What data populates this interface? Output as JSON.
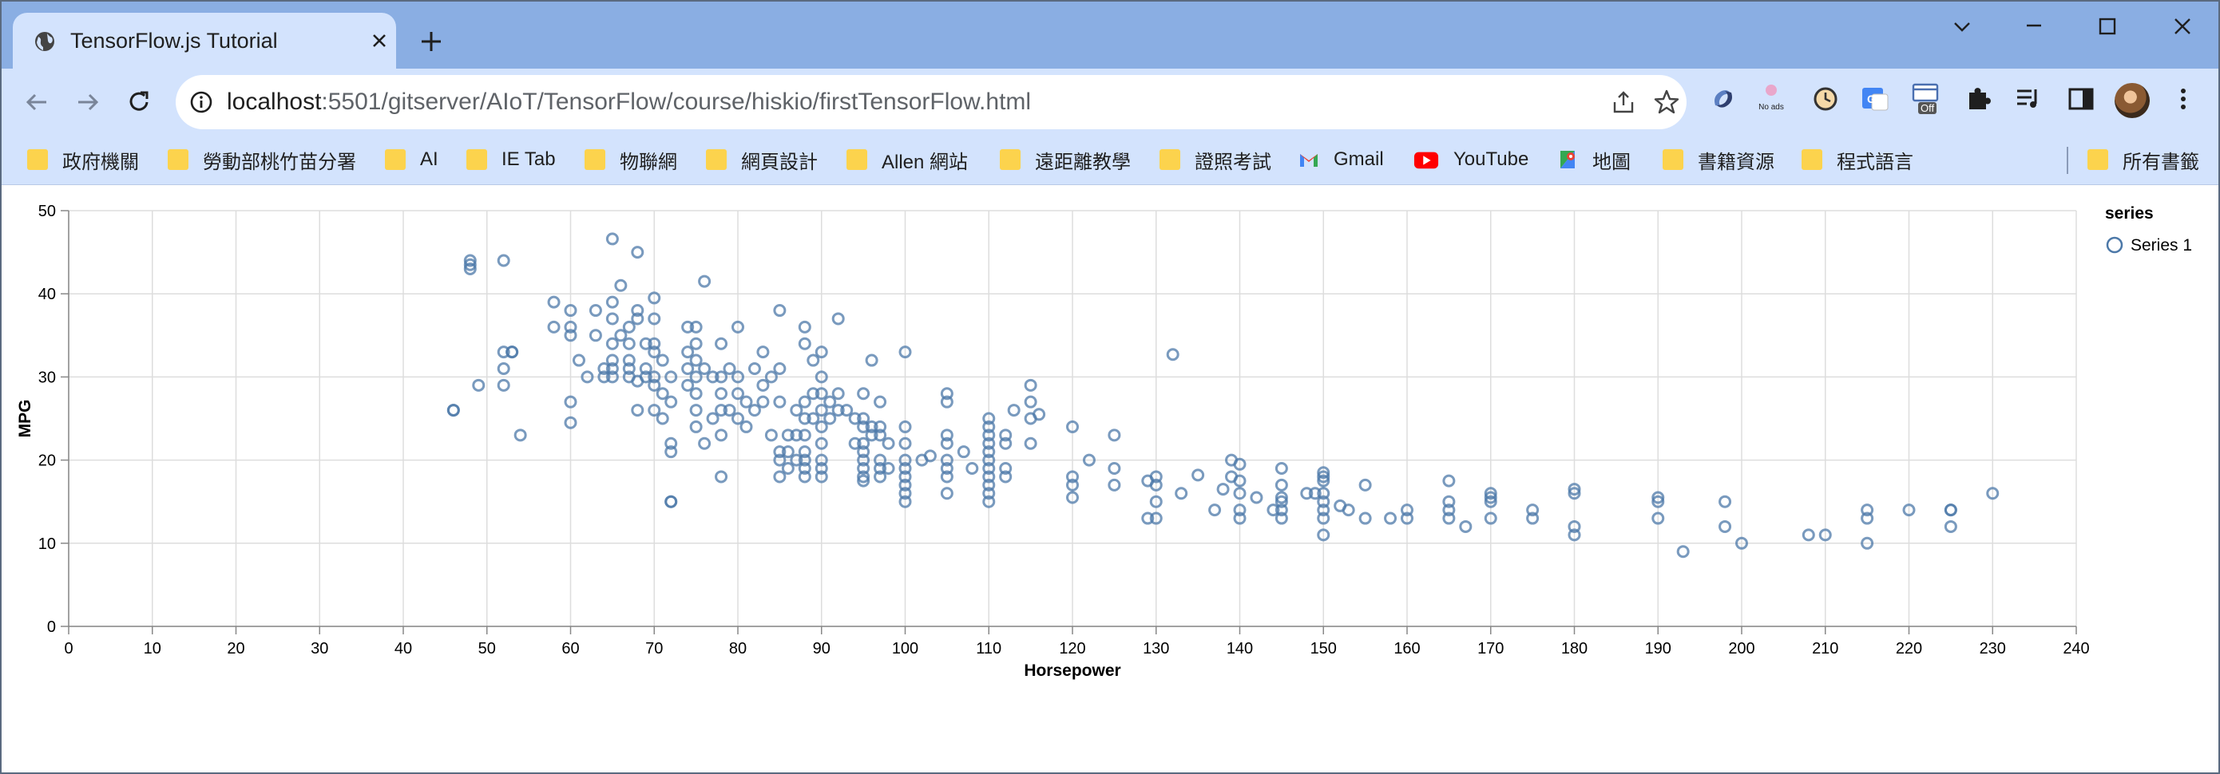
{
  "browser": {
    "tab": {
      "title": "TensorFlow.js Tutorial",
      "favicon": "globe-icon"
    },
    "url": {
      "host": "localhost",
      "path": ":5501/gitserver/AIoT/TensorFlow/course/hiskio/firstTensorFlow.html"
    },
    "extensions": {
      "noads_label": "No ads",
      "off_label": "Off"
    },
    "bookmarks": [
      {
        "label": "政府機關",
        "icon": "folder-icon"
      },
      {
        "label": "勞動部桃竹苗分署",
        "icon": "folder-icon"
      },
      {
        "label": "AI",
        "icon": "folder-icon"
      },
      {
        "label": "IE Tab",
        "icon": "folder-icon"
      },
      {
        "label": "物聯網",
        "icon": "folder-icon"
      },
      {
        "label": "網頁設計",
        "icon": "folder-icon"
      },
      {
        "label": "Allen 網站",
        "icon": "folder-icon"
      },
      {
        "label": "遠距離教學",
        "icon": "folder-icon"
      },
      {
        "label": "證照考試",
        "icon": "folder-icon"
      },
      {
        "label": "Gmail",
        "icon": "gmail-icon"
      },
      {
        "label": "YouTube",
        "icon": "youtube-icon"
      },
      {
        "label": "地圖",
        "icon": "maps-icon"
      },
      {
        "label": "書籍資源",
        "icon": "folder-icon"
      },
      {
        "label": "程式語言",
        "icon": "folder-icon"
      }
    ],
    "all_bookmarks": {
      "label": "所有書籤",
      "icon": "folder-icon"
    },
    "colors": {
      "titlebar": "#8aaee3",
      "toolbar": "#d3e3fd",
      "folder": "#fcd34d"
    }
  },
  "chart_data": {
    "type": "scatter",
    "xlabel": "Horsepower",
    "ylabel": "MPG",
    "xlim": [
      0,
      240
    ],
    "ylim": [
      0,
      50
    ],
    "xticks": [
      0,
      10,
      20,
      30,
      40,
      50,
      60,
      70,
      80,
      90,
      100,
      110,
      120,
      130,
      140,
      150,
      160,
      170,
      180,
      190,
      200,
      210,
      220,
      230,
      240
    ],
    "yticks": [
      0,
      10,
      20,
      30,
      40,
      50
    ],
    "grid": true,
    "legend": {
      "title": "series",
      "placement": "top-right"
    },
    "marker_color": "#4c78a8",
    "series": [
      {
        "name": "Series 1",
        "points": [
          [
            46,
            26
          ],
          [
            46,
            26
          ],
          [
            48,
            43
          ],
          [
            48,
            44
          ],
          [
            48,
            43.5
          ],
          [
            49,
            29
          ],
          [
            52,
            44
          ],
          [
            52,
            33
          ],
          [
            52,
            31
          ],
          [
            52,
            29
          ],
          [
            53,
            33
          ],
          [
            53,
            33
          ],
          [
            54,
            23
          ],
          [
            58,
            39
          ],
          [
            58,
            36
          ],
          [
            60,
            38
          ],
          [
            60,
            36
          ],
          [
            60,
            35
          ],
          [
            60,
            27
          ],
          [
            60,
            24.5
          ],
          [
            61,
            32
          ],
          [
            62,
            30
          ],
          [
            63,
            38
          ],
          [
            63,
            35
          ],
          [
            64,
            31
          ],
          [
            64,
            30
          ],
          [
            65,
            39
          ],
          [
            65,
            37
          ],
          [
            65,
            34
          ],
          [
            65,
            32
          ],
          [
            65,
            31
          ],
          [
            65,
            30
          ],
          [
            65,
            46.6
          ],
          [
            66,
            41
          ],
          [
            66,
            35
          ],
          [
            67,
            36
          ],
          [
            67,
            34
          ],
          [
            67,
            32
          ],
          [
            67,
            31
          ],
          [
            67,
            30
          ],
          [
            68,
            45
          ],
          [
            68,
            38
          ],
          [
            68,
            37
          ],
          [
            68,
            29.5
          ],
          [
            68,
            26
          ],
          [
            69,
            31
          ],
          [
            69,
            34
          ],
          [
            69,
            30
          ],
          [
            70,
            39.5
          ],
          [
            70,
            37
          ],
          [
            70,
            34
          ],
          [
            70,
            33
          ],
          [
            70,
            30
          ],
          [
            70,
            29
          ],
          [
            70,
            26
          ],
          [
            71,
            32
          ],
          [
            71,
            25
          ],
          [
            71,
            28
          ],
          [
            72,
            30
          ],
          [
            72,
            27
          ],
          [
            72,
            22
          ],
          [
            72,
            21
          ],
          [
            72,
            15
          ],
          [
            72,
            15
          ],
          [
            74,
            36
          ],
          [
            74,
            33
          ],
          [
            74,
            31
          ],
          [
            74,
            29
          ],
          [
            75,
            36
          ],
          [
            75,
            34
          ],
          [
            75,
            32
          ],
          [
            75,
            30
          ],
          [
            75,
            28
          ],
          [
            75,
            26
          ],
          [
            75,
            24
          ],
          [
            76,
            41.5
          ],
          [
            76,
            31
          ],
          [
            76,
            22
          ],
          [
            77,
            30
          ],
          [
            77,
            25
          ],
          [
            78,
            34
          ],
          [
            78,
            30
          ],
          [
            78,
            28
          ],
          [
            78,
            26
          ],
          [
            78,
            23
          ],
          [
            78,
            18
          ],
          [
            79,
            31
          ],
          [
            79,
            26
          ],
          [
            80,
            36
          ],
          [
            80,
            30
          ],
          [
            80,
            28
          ],
          [
            80,
            25
          ],
          [
            81,
            27
          ],
          [
            81,
            24
          ],
          [
            82,
            31
          ],
          [
            82,
            26
          ],
          [
            83,
            33
          ],
          [
            83,
            29
          ],
          [
            83,
            27
          ],
          [
            84,
            30
          ],
          [
            84,
            23
          ],
          [
            85,
            38
          ],
          [
            85,
            31
          ],
          [
            85,
            27
          ],
          [
            85,
            21
          ],
          [
            85,
            20
          ],
          [
            85,
            18
          ],
          [
            86,
            23
          ],
          [
            86,
            21
          ],
          [
            86,
            19
          ],
          [
            87,
            26
          ],
          [
            87,
            23
          ],
          [
            87,
            20
          ],
          [
            88,
            36
          ],
          [
            88,
            34
          ],
          [
            88,
            27
          ],
          [
            88,
            25
          ],
          [
            88,
            23
          ],
          [
            88,
            21
          ],
          [
            88,
            20
          ],
          [
            88,
            19
          ],
          [
            88,
            18
          ],
          [
            89,
            32
          ],
          [
            89,
            28
          ],
          [
            89,
            25
          ],
          [
            90,
            33
          ],
          [
            90,
            30
          ],
          [
            90,
            28
          ],
          [
            90,
            26
          ],
          [
            90,
            24
          ],
          [
            90,
            22
          ],
          [
            90,
            20
          ],
          [
            90,
            19
          ],
          [
            90,
            18
          ],
          [
            91,
            27
          ],
          [
            91,
            25
          ],
          [
            92,
            37
          ],
          [
            92,
            28
          ],
          [
            92,
            26
          ],
          [
            93,
            26
          ],
          [
            94,
            25
          ],
          [
            94,
            22
          ],
          [
            95,
            28
          ],
          [
            95,
            25
          ],
          [
            95,
            24
          ],
          [
            95,
            22
          ],
          [
            95,
            21
          ],
          [
            95,
            20
          ],
          [
            95,
            19
          ],
          [
            95,
            18
          ],
          [
            95,
            17.5
          ],
          [
            96,
            32
          ],
          [
            96,
            24
          ],
          [
            96,
            23
          ],
          [
            97,
            27
          ],
          [
            97,
            24
          ],
          [
            97,
            23
          ],
          [
            97,
            20
          ],
          [
            97,
            19
          ],
          [
            97,
            18
          ],
          [
            98,
            22
          ],
          [
            98,
            19
          ],
          [
            100,
            33
          ],
          [
            100,
            24
          ],
          [
            100,
            22
          ],
          [
            100,
            20
          ],
          [
            100,
            19
          ],
          [
            100,
            18
          ],
          [
            100,
            17
          ],
          [
            100,
            16
          ],
          [
            100,
            15
          ],
          [
            102,
            20
          ],
          [
            103,
            20.5
          ],
          [
            105,
            28
          ],
          [
            105,
            27
          ],
          [
            105,
            23
          ],
          [
            105,
            22
          ],
          [
            105,
            20
          ],
          [
            105,
            19
          ],
          [
            105,
            18
          ],
          [
            105,
            16
          ],
          [
            107,
            21
          ],
          [
            108,
            19
          ],
          [
            110,
            25
          ],
          [
            110,
            24
          ],
          [
            110,
            23
          ],
          [
            110,
            22
          ],
          [
            110,
            21
          ],
          [
            110,
            20
          ],
          [
            110,
            19
          ],
          [
            110,
            18
          ],
          [
            110,
            17
          ],
          [
            110,
            16
          ],
          [
            110,
            15
          ],
          [
            112,
            23
          ],
          [
            112,
            22
          ],
          [
            112,
            19
          ],
          [
            112,
            18
          ],
          [
            113,
            26
          ],
          [
            115,
            29
          ],
          [
            115,
            27
          ],
          [
            115,
            25
          ],
          [
            115,
            22
          ],
          [
            116,
            25.5
          ],
          [
            120,
            24
          ],
          [
            120,
            18
          ],
          [
            120,
            17
          ],
          [
            120,
            15.5
          ],
          [
            122,
            20
          ],
          [
            125,
            23
          ],
          [
            125,
            19
          ],
          [
            125,
            17
          ],
          [
            129,
            17.5
          ],
          [
            129,
            13
          ],
          [
            130,
            18
          ],
          [
            130,
            17
          ],
          [
            130,
            15
          ],
          [
            130,
            13
          ],
          [
            132,
            32.7
          ],
          [
            133,
            16
          ],
          [
            135,
            18.2
          ],
          [
            137,
            14
          ],
          [
            138,
            16.5
          ],
          [
            139,
            20
          ],
          [
            139,
            18
          ],
          [
            140,
            19.5
          ],
          [
            140,
            17.5
          ],
          [
            140,
            16
          ],
          [
            140,
            14
          ],
          [
            140,
            13
          ],
          [
            142,
            15.5
          ],
          [
            144,
            14
          ],
          [
            145,
            19
          ],
          [
            145,
            17
          ],
          [
            145,
            15.5
          ],
          [
            145,
            15
          ],
          [
            145,
            14
          ],
          [
            145,
            13
          ],
          [
            148,
            16
          ],
          [
            149,
            16
          ],
          [
            150,
            18.5
          ],
          [
            150,
            18
          ],
          [
            150,
            17.5
          ],
          [
            150,
            16
          ],
          [
            150,
            15
          ],
          [
            150,
            14
          ],
          [
            150,
            13
          ],
          [
            150,
            11
          ],
          [
            152,
            14.5
          ],
          [
            153,
            14
          ],
          [
            155,
            17
          ],
          [
            155,
            13
          ],
          [
            158,
            13
          ],
          [
            160,
            14
          ],
          [
            160,
            13
          ],
          [
            165,
            17.5
          ],
          [
            165,
            15
          ],
          [
            165,
            14
          ],
          [
            165,
            13
          ],
          [
            167,
            12
          ],
          [
            170,
            16
          ],
          [
            170,
            15.5
          ],
          [
            170,
            15
          ],
          [
            170,
            13
          ],
          [
            175,
            14
          ],
          [
            175,
            13
          ],
          [
            180,
            16.5
          ],
          [
            180,
            16
          ],
          [
            180,
            12
          ],
          [
            180,
            11
          ],
          [
            190,
            15.5
          ],
          [
            190,
            15
          ],
          [
            190,
            13
          ],
          [
            193,
            9
          ],
          [
            198,
            15
          ],
          [
            198,
            12
          ],
          [
            200,
            10
          ],
          [
            208,
            11
          ],
          [
            210,
            11
          ],
          [
            215,
            14
          ],
          [
            215,
            13
          ],
          [
            215,
            10
          ],
          [
            220,
            14
          ],
          [
            225,
            14
          ],
          [
            225,
            14
          ],
          [
            225,
            12
          ],
          [
            230,
            16
          ]
        ]
      }
    ]
  }
}
